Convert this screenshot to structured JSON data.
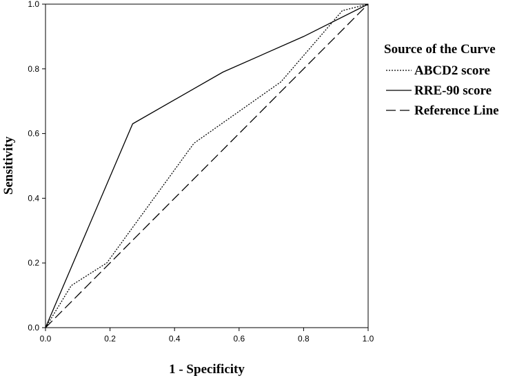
{
  "chart_data": {
    "type": "line",
    "title": "",
    "xlabel": "1 - Specificity",
    "ylabel": "Sensitivity",
    "xlim": [
      0,
      1
    ],
    "ylim": [
      0,
      1
    ],
    "xticks": [
      "0.0",
      "0.2",
      "0.4",
      "0.6",
      "0.8",
      "1.0"
    ],
    "yticks": [
      "0.0",
      "0.2",
      "0.4",
      "0.6",
      "0.8",
      "1.0"
    ],
    "grid": false,
    "legend": {
      "title": "Source of the Curve",
      "placement": "right"
    },
    "series": [
      {
        "name": "ABCD2 score",
        "dash": "dotted",
        "x": [
          0.0,
          0.08,
          0.19,
          0.46,
          0.73,
          0.92,
          1.0
        ],
        "y": [
          0.0,
          0.13,
          0.2,
          0.57,
          0.76,
          0.98,
          1.0
        ]
      },
      {
        "name": "RRE-90 score",
        "dash": "solid",
        "x": [
          0.0,
          0.27,
          0.55,
          0.8,
          1.0
        ],
        "y": [
          0.0,
          0.63,
          0.79,
          0.9,
          1.0
        ]
      },
      {
        "name": "Reference Line",
        "dash": "dashed",
        "x": [
          0.0,
          1.0
        ],
        "y": [
          0.0,
          1.0
        ]
      }
    ]
  }
}
